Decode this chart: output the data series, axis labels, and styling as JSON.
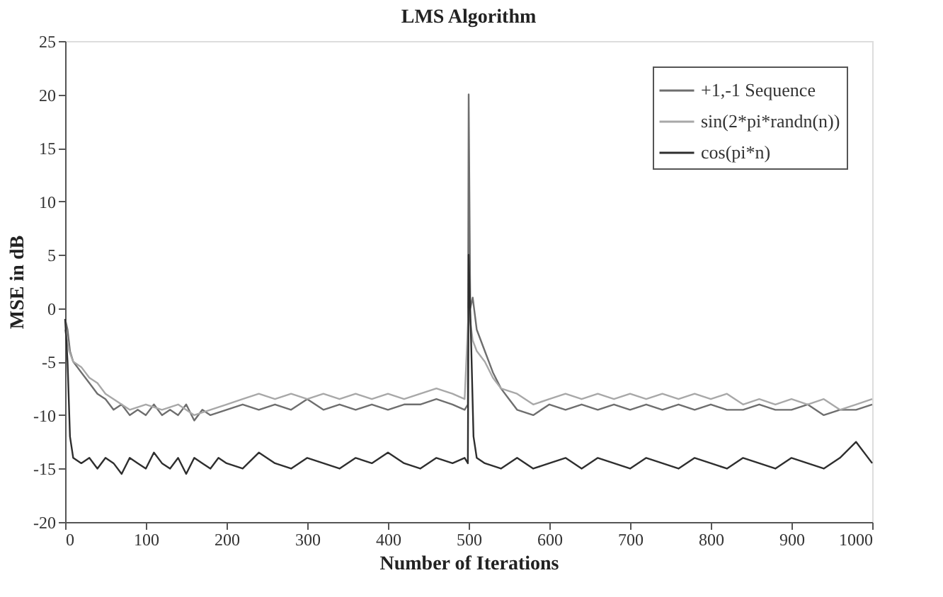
{
  "chart_data": {
    "type": "line",
    "title": "LMS Algorithm",
    "xlabel": "Number of Iterations",
    "ylabel": "MSE in dB",
    "xlim": [
      0,
      1000
    ],
    "xticks": [
      0,
      100,
      200,
      300,
      400,
      500,
      600,
      700,
      800,
      900,
      1000
    ],
    "ylim": [
      -20,
      25
    ],
    "yticks": [
      -20,
      -15,
      -10,
      -5,
      0,
      5,
      10,
      15,
      20,
      25
    ],
    "grid": false,
    "legend": "top right",
    "series": [
      {
        "name": "+1,-1 Sequence",
        "color": "#6e6e6e",
        "x": [
          0,
          3,
          6,
          10,
          15,
          20,
          30,
          40,
          50,
          60,
          70,
          80,
          90,
          100,
          110,
          120,
          130,
          140,
          150,
          160,
          170,
          180,
          200,
          220,
          240,
          260,
          280,
          300,
          320,
          340,
          360,
          380,
          400,
          420,
          440,
          460,
          480,
          495,
          499,
          500,
          502,
          505,
          510,
          520,
          530,
          540,
          550,
          560,
          580,
          600,
          620,
          640,
          660,
          680,
          700,
          720,
          740,
          760,
          780,
          800,
          820,
          840,
          860,
          880,
          900,
          920,
          940,
          960,
          980,
          1000
        ],
        "values": [
          -1,
          -2,
          -4,
          -5,
          -5.5,
          -6,
          -7,
          -8,
          -8.5,
          -9.5,
          -9,
          -10,
          -9.5,
          -10,
          -9,
          -10,
          -9.5,
          -10,
          -9,
          -10.5,
          -9.5,
          -10,
          -9.5,
          -9,
          -9.5,
          -9,
          -9.5,
          -8.5,
          -9.5,
          -9,
          -9.5,
          -9,
          -9.5,
          -9,
          -9,
          -8.5,
          -9,
          -9.5,
          -9,
          20,
          0,
          1,
          -2,
          -4,
          -6,
          -7.5,
          -8.5,
          -9.5,
          -10,
          -9,
          -9.5,
          -9,
          -9.5,
          -9,
          -9.5,
          -9,
          -9.5,
          -9,
          -9.5,
          -9,
          -9.5,
          -9.5,
          -9,
          -9.5,
          -9.5,
          -9,
          -10,
          -9.5,
          -9.5,
          -9
        ]
      },
      {
        "name": "sin(2*pi*randn(n))",
        "color": "#a8a8a8",
        "x": [
          0,
          5,
          10,
          20,
          30,
          40,
          50,
          60,
          70,
          80,
          100,
          120,
          140,
          160,
          180,
          200,
          220,
          240,
          260,
          280,
          300,
          320,
          340,
          360,
          380,
          400,
          420,
          440,
          460,
          480,
          495,
          500,
          505,
          510,
          520,
          530,
          540,
          560,
          580,
          600,
          620,
          640,
          660,
          680,
          700,
          720,
          740,
          760,
          780,
          800,
          820,
          840,
          860,
          880,
          900,
          920,
          940,
          960,
          980,
          1000
        ],
        "values": [
          -2,
          -4,
          -5,
          -5.5,
          -6.5,
          -7,
          -8,
          -8.5,
          -9,
          -9.5,
          -9,
          -9.5,
          -9,
          -10,
          -9.5,
          -9,
          -8.5,
          -8,
          -8.5,
          -8,
          -8.5,
          -8,
          -8.5,
          -8,
          -8.5,
          -8,
          -8.5,
          -8,
          -7.5,
          -8,
          -8.5,
          0,
          -3,
          -4,
          -5,
          -6.5,
          -7.5,
          -8,
          -9,
          -8.5,
          -8,
          -8.5,
          -8,
          -8.5,
          -8,
          -8.5,
          -8,
          -8.5,
          -8,
          -8.5,
          -8,
          -9,
          -8.5,
          -9,
          -8.5,
          -9,
          -8.5,
          -9.5,
          -9,
          -8.5
        ]
      },
      {
        "name": "cos(pi*n)",
        "color": "#2e2e2e",
        "x": [
          0,
          3,
          6,
          10,
          20,
          30,
          40,
          50,
          60,
          70,
          80,
          90,
          100,
          110,
          120,
          130,
          140,
          150,
          160,
          170,
          180,
          190,
          200,
          220,
          240,
          260,
          280,
          300,
          320,
          340,
          360,
          380,
          400,
          420,
          440,
          460,
          480,
          495,
          499,
          500,
          503,
          506,
          510,
          520,
          540,
          560,
          580,
          600,
          620,
          640,
          660,
          680,
          700,
          720,
          740,
          760,
          780,
          800,
          820,
          840,
          860,
          880,
          900,
          920,
          940,
          960,
          980,
          1000
        ],
        "values": [
          -1,
          -5,
          -12,
          -14,
          -14.5,
          -14,
          -15,
          -14,
          -14.5,
          -15.5,
          -14,
          -14.5,
          -15,
          -13.5,
          -14.5,
          -15,
          -14,
          -15.5,
          -14,
          -14.5,
          -15,
          -14,
          -14.5,
          -15,
          -13.5,
          -14.5,
          -15,
          -14,
          -14.5,
          -15,
          -14,
          -14.5,
          -13.5,
          -14.5,
          -15,
          -14,
          -14.5,
          -14,
          -14.5,
          5,
          -3,
          -12,
          -14,
          -14.5,
          -15,
          -14,
          -15,
          -14.5,
          -14,
          -15,
          -14,
          -14.5,
          -15,
          -14,
          -14.5,
          -15,
          -14,
          -14.5,
          -15,
          -14,
          -14.5,
          -15,
          -14,
          -14.5,
          -15,
          -14,
          -12.5,
          -14.5
        ]
      }
    ]
  }
}
